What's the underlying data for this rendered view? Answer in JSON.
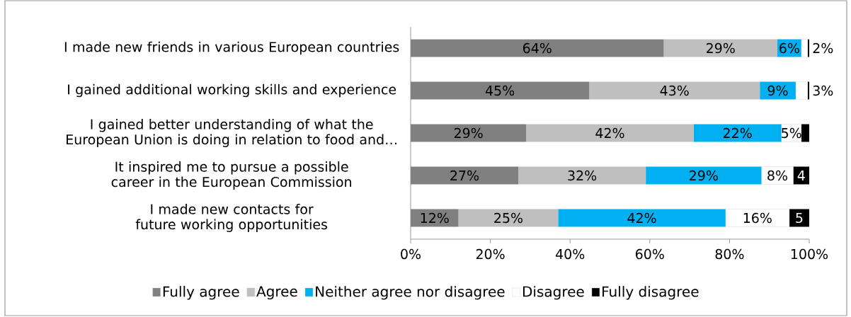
{
  "chart_data": {
    "type": "bar",
    "orientation": "horizontal",
    "stacked": true,
    "categories": [
      "I made new friends in various European countries",
      "I gained additional working skills and experience",
      "I gained better understanding of what the European Union is doing in relation to food and…",
      "It inspired me to pursue a possible career in the European Commission",
      "I made new contacts for future working opportunities"
    ],
    "series": [
      {
        "name": "Fully agree",
        "color": "#808080",
        "values": [
          63.5,
          44.8,
          29,
          27,
          12
        ],
        "value_labels": [
          "64%",
          "45%",
          "29%",
          "27%",
          "12%"
        ]
      },
      {
        "name": "Agree",
        "color": "#bfbfbf",
        "values": [
          28.5,
          42.8,
          42,
          32,
          25
        ],
        "value_labels": [
          "29%",
          "43%",
          "42%",
          "32%",
          "25%"
        ]
      },
      {
        "name": "Neither agree nor disagree",
        "color": "#00b0f0",
        "values": [
          6,
          9,
          22,
          29,
          42
        ],
        "value_labels": [
          "6%",
          "9%",
          "22%",
          "29%",
          "42%"
        ]
      },
      {
        "name": "Disagree",
        "color": "#ffffff",
        "values": [
          1.6,
          3,
          5,
          8,
          16
        ],
        "value_labels": [
          "2%",
          "3%",
          "5%",
          "8%",
          "16%"
        ]
      },
      {
        "name": "Fully disagree",
        "color": "#000000",
        "values": [
          0.4,
          0.4,
          2,
          4,
          5
        ],
        "value_labels": [
          null,
          null,
          null,
          "4",
          "5"
        ]
      }
    ],
    "xlim": [
      0,
      100
    ],
    "xticks": [
      {
        "value": 0,
        "label": "0%"
      },
      {
        "value": 20,
        "label": "20%"
      },
      {
        "value": 40,
        "label": "40%"
      },
      {
        "value": 60,
        "label": "60%"
      },
      {
        "value": 80,
        "label": "80%"
      },
      {
        "value": 100,
        "label": "100%"
      }
    ],
    "legend": "bottom"
  }
}
